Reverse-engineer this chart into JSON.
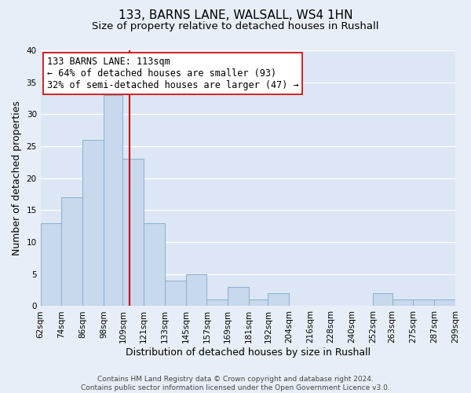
{
  "title": "133, BARNS LANE, WALSALL, WS4 1HN",
  "subtitle": "Size of property relative to detached houses in Rushall",
  "xlabel": "Distribution of detached houses by size in Rushall",
  "ylabel": "Number of detached properties",
  "bin_edges": [
    62,
    74,
    86,
    98,
    109,
    121,
    133,
    145,
    157,
    169,
    181,
    192,
    204,
    216,
    228,
    240,
    252,
    263,
    275,
    287,
    299
  ],
  "bin_labels": [
    "62sqm",
    "74sqm",
    "86sqm",
    "98sqm",
    "109sqm",
    "121sqm",
    "133sqm",
    "145sqm",
    "157sqm",
    "169sqm",
    "181sqm",
    "192sqm",
    "204sqm",
    "216sqm",
    "228sqm",
    "240sqm",
    "252sqm",
    "263sqm",
    "275sqm",
    "287sqm",
    "299sqm"
  ],
  "counts": [
    13,
    17,
    26,
    33,
    23,
    13,
    4,
    5,
    1,
    3,
    1,
    2,
    0,
    0,
    0,
    0,
    2,
    1,
    1,
    1
  ],
  "bar_color": "#c8d8ed",
  "bar_edge_color": "#8ab0d0",
  "property_line_x": 113,
  "property_line_color": "#cc0000",
  "annotation_line1": "133 BARNS LANE: 113sqm",
  "annotation_line2": "← 64% of detached houses are smaller (93)",
  "annotation_line3": "32% of semi-detached houses are larger (47) →",
  "annotation_box_edge_color": "#cc0000",
  "annotation_box_face_color": "#ffffff",
  "ylim": [
    0,
    40
  ],
  "yticks": [
    0,
    5,
    10,
    15,
    20,
    25,
    30,
    35,
    40
  ],
  "footer_line1": "Contains HM Land Registry data © Crown copyright and database right 2024.",
  "footer_line2": "Contains public sector information licensed under the Open Government Licence v3.0.",
  "bg_color": "#e8eef7",
  "plot_bg_color": "#dce6f4",
  "grid_color": "#ffffff",
  "title_fontsize": 11,
  "subtitle_fontsize": 9.5,
  "label_fontsize": 9,
  "tick_fontsize": 7.5,
  "footer_fontsize": 6.5,
  "annotation_fontsize": 8.5
}
